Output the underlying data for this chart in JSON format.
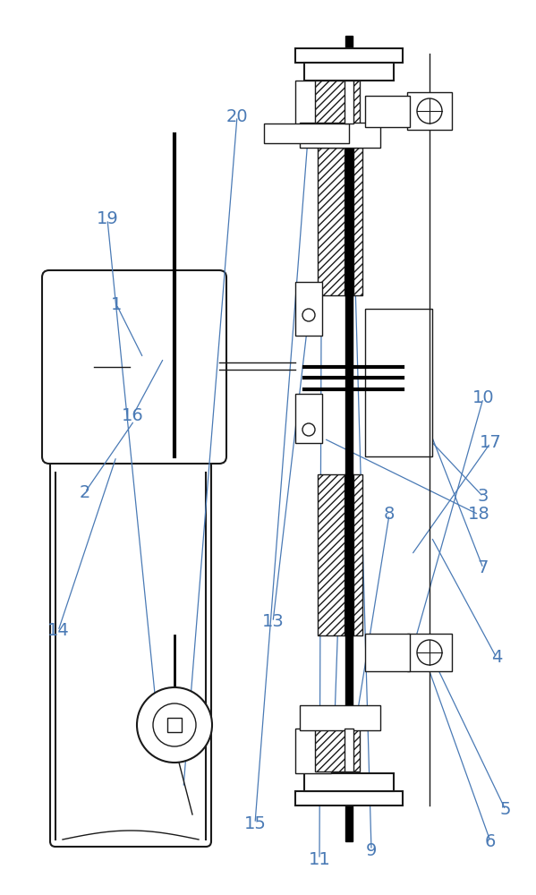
{
  "bg_color": "#ffffff",
  "line_color": "#1a1a1a",
  "label_color": "#4a7ab5",
  "fig_width": 5.99,
  "fig_height": 10.0
}
